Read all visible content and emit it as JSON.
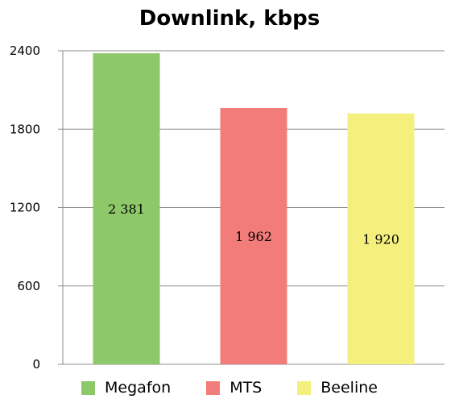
{
  "chart_data": {
    "type": "bar",
    "title": "Downlink, kbps",
    "categories": [
      "Megafon",
      "MTS",
      "Beeline"
    ],
    "values": [
      2381,
      1962,
      1920
    ],
    "value_labels": [
      "2 381",
      "1 962",
      "1 920"
    ],
    "colors": [
      "#8dc969",
      "#f17c7a",
      "#f5ef7e"
    ],
    "ylim": [
      0,
      2400
    ],
    "yticks": [
      0,
      600,
      1200,
      1800,
      2400
    ],
    "ytick_labels": [
      "0",
      "600",
      "1200",
      "1800",
      "2400"
    ],
    "grid": true,
    "legend": "bottom",
    "xlabel": "",
    "ylabel": ""
  }
}
